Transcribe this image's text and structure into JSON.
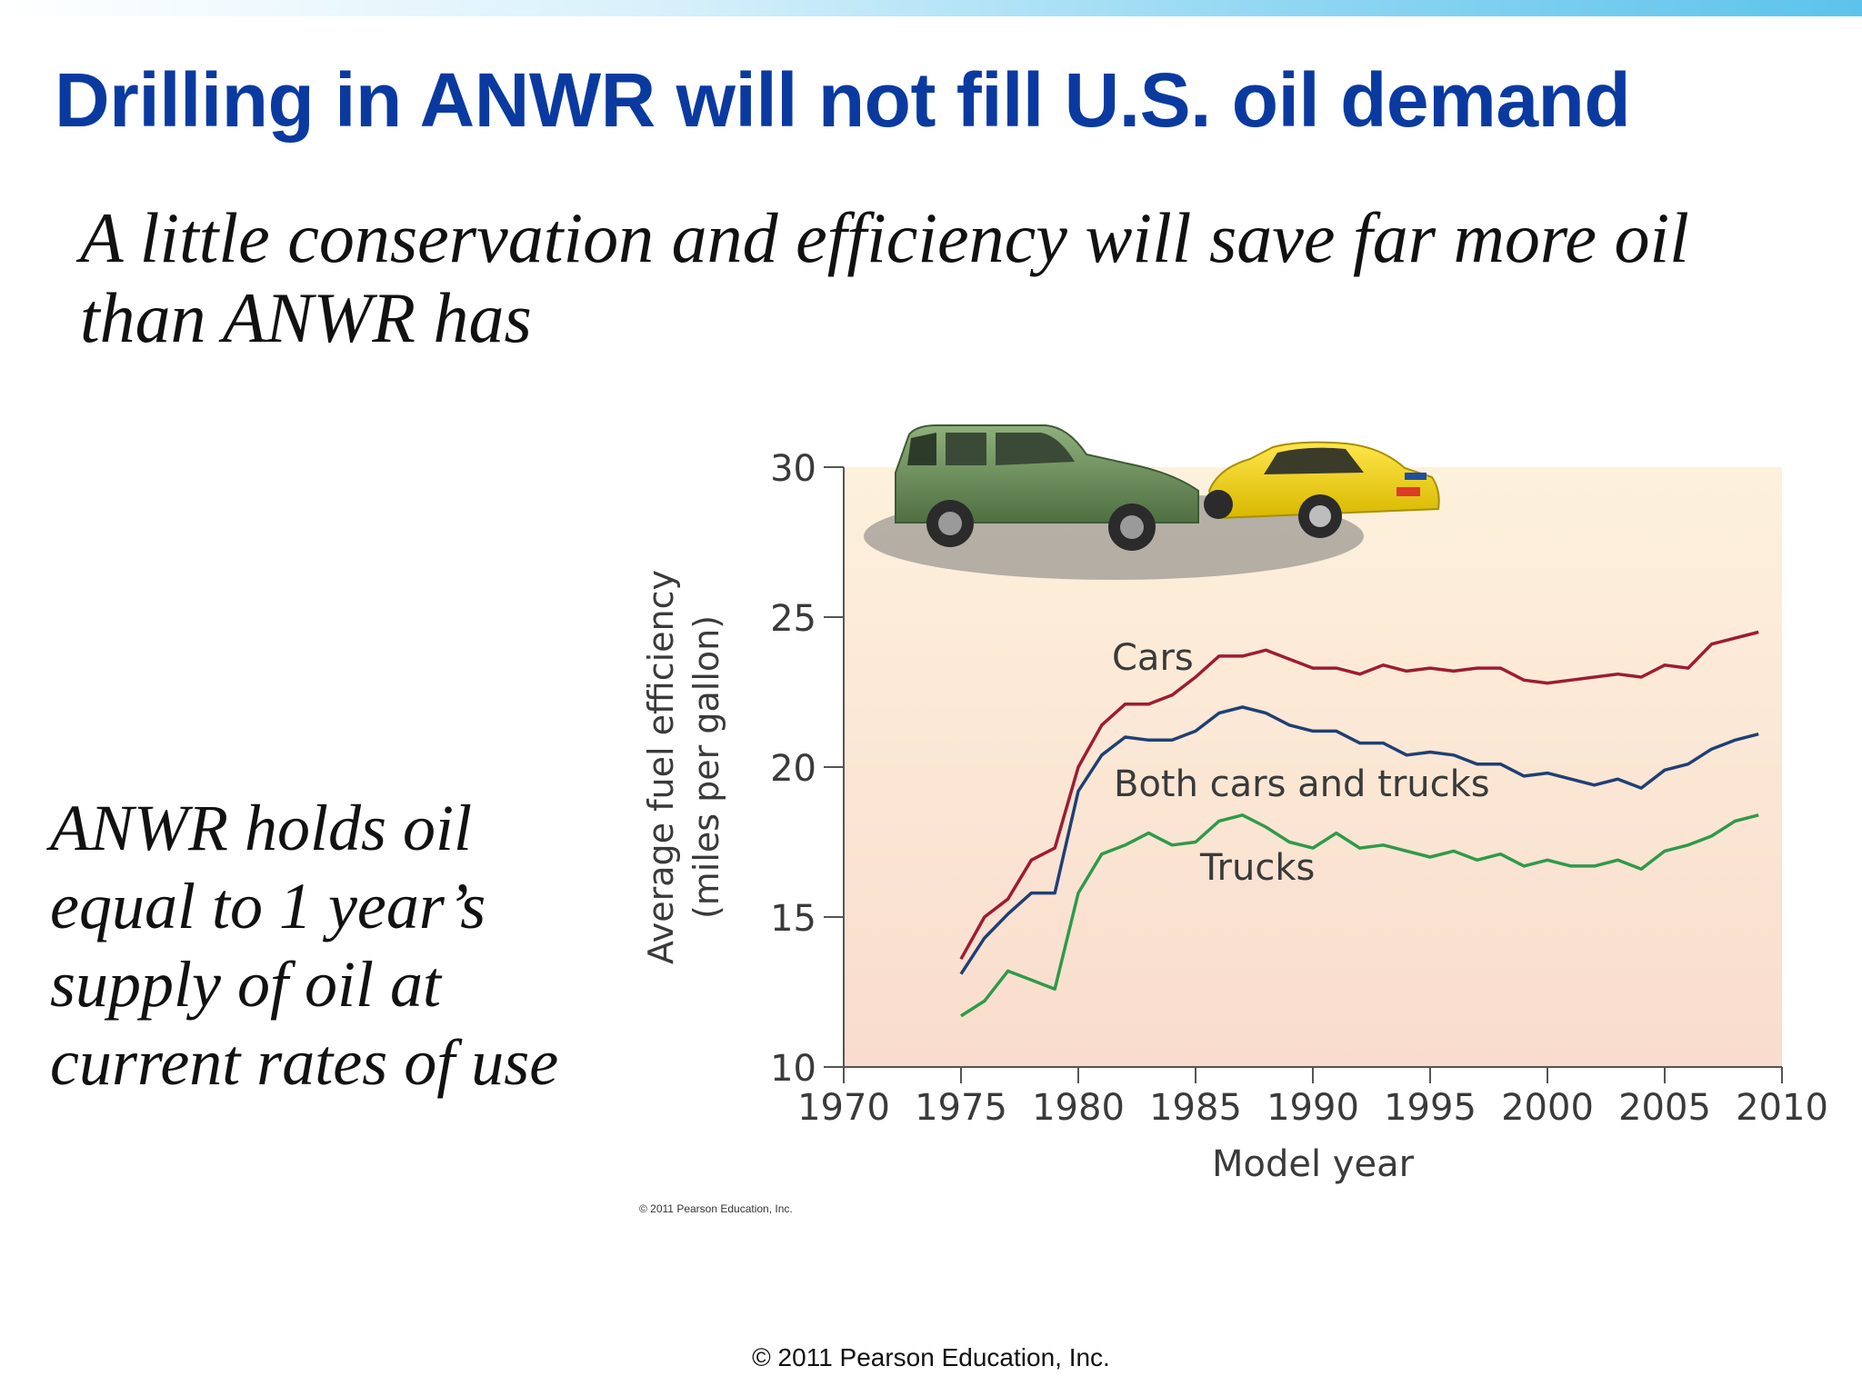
{
  "slide": {
    "title": "Drilling in ANWR will not fill U.S. oil demand",
    "subtitle": "A little conservation and efficiency will save far more oil than ANWR has",
    "side_note": "ANWR holds oil equal to 1 year’s supply of oil at current rates of use",
    "footer": "© 2011 Pearson Education, Inc."
  },
  "chart_data": {
    "type": "line",
    "title": "",
    "xlabel": "Model year",
    "ylabel": "Average fuel efficiency (miles per gallon)",
    "ylabel_line1": "Average fuel efficiency",
    "ylabel_line2": "(miles per gallon)",
    "xlim": [
      1970,
      2010
    ],
    "ylim": [
      10,
      30
    ],
    "x_ticks": [
      1970,
      1975,
      1980,
      1985,
      1990,
      1995,
      2000,
      2005,
      2010
    ],
    "y_ticks": [
      10,
      15,
      20,
      25,
      30
    ],
    "grid": false,
    "copyright": "© 2011 Pearson Education, Inc.",
    "x": [
      1975,
      1976,
      1977,
      1978,
      1979,
      1980,
      1981,
      1982,
      1983,
      1984,
      1985,
      1986,
      1987,
      1988,
      1989,
      1990,
      1991,
      1992,
      1993,
      1994,
      1995,
      1996,
      1997,
      1998,
      1999,
      2000,
      2001,
      2002,
      2003,
      2004,
      2005,
      2006,
      2007,
      2008,
      2009
    ],
    "series": [
      {
        "name": "Cars",
        "color": "#9e1b32",
        "values": [
          13.6,
          15.0,
          15.6,
          16.9,
          17.3,
          20.0,
          21.4,
          22.1,
          22.1,
          22.4,
          23.0,
          23.7,
          23.7,
          23.9,
          23.6,
          23.3,
          23.3,
          23.1,
          23.4,
          23.2,
          23.3,
          23.2,
          23.3,
          23.3,
          22.9,
          22.8,
          22.9,
          23.0,
          23.1,
          23.0,
          23.4,
          23.3,
          24.1,
          24.3,
          24.5
        ]
      },
      {
        "name": "Both cars and trucks",
        "color": "#1f3f74",
        "values": [
          13.1,
          14.3,
          15.1,
          15.8,
          15.8,
          19.2,
          20.4,
          21.0,
          20.9,
          20.9,
          21.2,
          21.8,
          22.0,
          21.8,
          21.4,
          21.2,
          21.2,
          20.8,
          20.8,
          20.4,
          20.5,
          20.4,
          20.1,
          20.1,
          19.7,
          19.8,
          19.6,
          19.4,
          19.6,
          19.3,
          19.9,
          20.1,
          20.6,
          20.9,
          21.1
        ]
      },
      {
        "name": "Trucks",
        "color": "#2e9a4a",
        "values": [
          11.7,
          12.2,
          13.2,
          12.9,
          12.6,
          15.8,
          17.1,
          17.4,
          17.8,
          17.4,
          17.5,
          18.2,
          18.4,
          18.0,
          17.5,
          17.3,
          17.8,
          17.3,
          17.4,
          17.2,
          17.0,
          17.2,
          16.9,
          17.1,
          16.7,
          16.9,
          16.7,
          16.7,
          16.9,
          16.6,
          17.2,
          17.4,
          17.7,
          18.2,
          18.4
        ]
      }
    ]
  }
}
